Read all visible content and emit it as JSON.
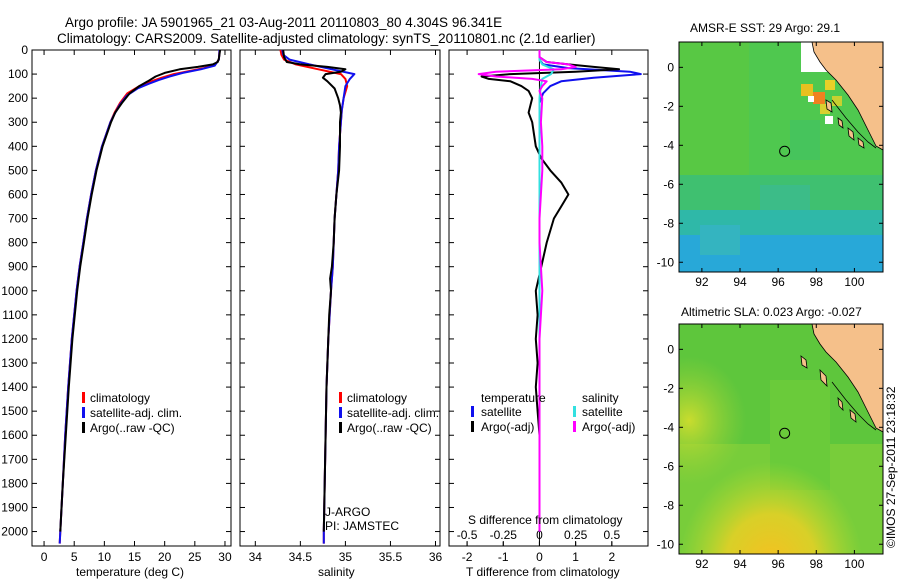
{
  "title": {
    "line1": "Argo profile: JA 5901965_21 03-Aug-2011 20110803_80 4.304S 96.341E",
    "line2": "Climatology: CARS2009. Satellite-adjusted climatology: synTS_20110801.nc (2.1d earlier)"
  },
  "credit": "©IMOS 27-Sep-2011 23:18:32",
  "colors": {
    "red": "#ff0000",
    "blue": "#1010ee",
    "black": "#000000",
    "magenta": "#ff00ff",
    "cyan": "#33e0e0"
  },
  "depth_axis": {
    "ticks": [
      "0",
      "100",
      "200",
      "300",
      "400",
      "500",
      "600",
      "700",
      "800",
      "900",
      "1000",
      "1100",
      "1200",
      "1300",
      "1400",
      "1500",
      "1600",
      "1700",
      "1800",
      "1900",
      "2000"
    ],
    "range": [
      0,
      2060
    ]
  },
  "chart_data": [
    {
      "type": "line",
      "id": "temperature",
      "xlabel": "temperature (deg C)",
      "xlim": [
        -2,
        31
      ],
      "xticks": [
        "0",
        "5",
        "10",
        "15",
        "20",
        "25",
        "30"
      ],
      "ylim": [
        0,
        2060
      ],
      "legend": [
        "climatology",
        "satellite-adj. clim.",
        "Argo(..raw -QC)"
      ],
      "series": [
        {
          "name": "climatology",
          "color": "red",
          "depth": [
            0,
            40,
            60,
            75,
            90,
            100,
            115,
            130,
            150,
            180,
            220,
            260,
            300,
            400,
            500,
            600,
            700,
            800,
            900,
            1000,
            1200,
            1400,
            1600,
            1800,
            2000,
            2050
          ],
          "values": [
            29.1,
            29.0,
            28.4,
            26.5,
            23.5,
            21.5,
            19.5,
            17.8,
            15.8,
            13.8,
            12.6,
            11.7,
            11.0,
            9.6,
            8.6,
            7.8,
            7.1,
            6.5,
            5.9,
            5.4,
            4.6,
            4.0,
            3.5,
            3.1,
            2.7,
            2.6
          ]
        },
        {
          "name": "satellite-adj. clim.",
          "color": "blue",
          "depth": [
            0,
            40,
            65,
            80,
            95,
            110,
            125,
            140,
            160,
            190,
            230,
            270,
            300,
            400,
            500,
            600,
            700,
            800,
            900,
            1000,
            1200,
            1400,
            1600,
            1800,
            2000,
            2050
          ],
          "values": [
            29.1,
            29.0,
            28.3,
            26.0,
            23.0,
            20.8,
            19.0,
            17.4,
            15.5,
            13.7,
            12.5,
            11.6,
            11.0,
            9.6,
            8.6,
            7.8,
            7.1,
            6.5,
            5.9,
            5.4,
            4.6,
            4.0,
            3.5,
            3.1,
            2.7,
            2.6
          ]
        },
        {
          "name": "Argo(..raw -QC)",
          "color": "black",
          "depth": [
            0,
            35,
            50,
            60,
            70,
            80,
            95,
            110,
            130,
            150,
            180,
            220,
            260,
            300,
            400,
            500,
            600,
            700,
            800,
            900,
            1000,
            1200,
            1400,
            1600,
            1800,
            1950,
            2000
          ],
          "values": [
            29.2,
            29.0,
            28.8,
            28.0,
            25.5,
            22.5,
            20.0,
            18.5,
            17.2,
            15.8,
            14.2,
            12.9,
            11.8,
            11.1,
            9.7,
            8.7,
            7.9,
            7.2,
            6.6,
            6.0,
            5.5,
            4.7,
            4.1,
            3.6,
            3.1,
            2.8,
            2.7
          ]
        }
      ]
    },
    {
      "type": "line",
      "id": "salinity",
      "xlabel": "salinity",
      "xlim": [
        33.83,
        36.05
      ],
      "xticks": [
        "34",
        "34.5",
        "35",
        "35.5",
        "36"
      ],
      "ylim": [
        0,
        2060
      ],
      "legend": [
        "climatology",
        "satellite-adj. clim.",
        "Argo(..raw -QC)"
      ],
      "annotation": [
        "J-ARGO",
        "PI: JAMSTEC"
      ],
      "series": [
        {
          "name": "climatology",
          "color": "red",
          "depth": [
            0,
            20,
            40,
            60,
            80,
            100,
            120,
            150,
            200,
            250,
            300,
            400,
            500,
            600,
            700,
            800,
            900,
            1000,
            1200,
            1400,
            1600,
            1800,
            2000,
            2050
          ],
          "values": [
            34.28,
            34.29,
            34.32,
            34.45,
            34.7,
            34.95,
            35.0,
            35.02,
            34.98,
            34.96,
            34.95,
            34.93,
            34.92,
            34.9,
            34.88,
            34.87,
            34.86,
            34.84,
            34.81,
            34.79,
            34.78,
            34.77,
            34.76,
            34.76
          ]
        },
        {
          "name": "satellite-adj. clim.",
          "color": "blue",
          "depth": [
            0,
            20,
            40,
            60,
            80,
            100,
            120,
            150,
            200,
            250,
            300,
            400,
            500,
            600,
            700,
            800,
            900,
            1000,
            1200,
            1400,
            1600,
            1800,
            2000,
            2050
          ],
          "values": [
            34.3,
            34.31,
            34.38,
            34.6,
            34.85,
            35.1,
            35.05,
            35.0,
            34.98,
            34.96,
            34.95,
            34.93,
            34.92,
            34.9,
            34.88,
            34.87,
            34.86,
            34.84,
            34.81,
            34.79,
            34.78,
            34.77,
            34.76,
            34.76
          ]
        },
        {
          "name": "Argo(..raw -QC)",
          "color": "black",
          "depth": [
            0,
            30,
            50,
            60,
            70,
            80,
            90,
            100,
            115,
            130,
            160,
            200,
            230,
            260,
            300,
            400,
            500,
            600,
            700,
            800,
            900,
            950,
            1000,
            1100,
            1200,
            1400,
            1600,
            1800,
            2000
          ],
          "values": [
            34.31,
            34.32,
            34.35,
            34.5,
            34.8,
            35.0,
            34.95,
            34.78,
            34.75,
            34.8,
            34.88,
            34.92,
            34.94,
            34.95,
            34.94,
            34.94,
            34.93,
            34.9,
            34.88,
            34.87,
            34.85,
            34.83,
            34.84,
            34.82,
            34.81,
            34.79,
            34.78,
            34.77,
            34.76
          ]
        }
      ]
    },
    {
      "type": "line",
      "id": "difference",
      "xlabel": "T difference from climatology",
      "xlabel_top": "S difference from climatology",
      "xlim": [
        -2.5,
        3.0
      ],
      "xticks": [
        "-2",
        "-1",
        "0",
        "1",
        "2"
      ],
      "xticks_top": [
        "-0.5",
        "-0.25",
        "0",
        "0.25",
        "0.5"
      ],
      "ylim": [
        0,
        2060
      ],
      "legend": [
        "temperature",
        "satellite",
        "Argo(-adj)",
        "salinity",
        "satellite",
        "Argo(-adj)"
      ],
      "series": [
        {
          "name": "T satellite",
          "color": "blue",
          "depth": [
            0,
            40,
            60,
            75,
            90,
            100,
            115,
            130,
            150,
            180,
            220,
            300,
            500,
            1000,
            1500,
            2000
          ],
          "values": [
            0,
            0,
            0.1,
            0.8,
            2.5,
            2.8,
            1.5,
            0.6,
            0.3,
            0.1,
            0,
            0,
            0,
            0,
            0,
            0
          ]
        },
        {
          "name": "T Argo(-adj)",
          "color": "black",
          "depth": [
            0,
            30,
            50,
            60,
            70,
            80,
            90,
            100,
            110,
            120,
            130,
            150,
            170,
            200,
            230,
            260,
            300,
            350,
            400,
            450,
            500,
            550,
            600,
            650,
            700,
            800,
            900,
            1000,
            1100,
            1200,
            1300,
            1400,
            1500,
            1600,
            1700,
            1800,
            1900,
            2000
          ],
          "values": [
            0,
            0,
            0.2,
            0.8,
            1.5,
            2.2,
            1.0,
            -0.8,
            -1.6,
            -1.4,
            -0.8,
            -0.5,
            -0.3,
            -0.2,
            -0.25,
            -0.3,
            -0.2,
            -0.15,
            -0.1,
            0.05,
            0.3,
            0.6,
            0.8,
            0.6,
            0.4,
            0.2,
            0.05,
            -0.1,
            -0.05,
            -0.1,
            -0.05,
            -0.1,
            -0.05,
            0,
            0,
            0,
            0,
            0
          ]
        },
        {
          "name": "S satellite",
          "color": "cyan",
          "depth": [
            0,
            40,
            60,
            80,
            100,
            120,
            150,
            200,
            300,
            500,
            1000,
            1500,
            2000
          ],
          "values": [
            0,
            0,
            0.02,
            0.1,
            0.08,
            0.02,
            0.01,
            0,
            0,
            0,
            0,
            0,
            0
          ]
        },
        {
          "name": "S Argo(-adj)",
          "color": "magenta",
          "depth": [
            0,
            30,
            50,
            60,
            70,
            80,
            90,
            100,
            110,
            120,
            130,
            150,
            170,
            200,
            300,
            400,
            500,
            600,
            700,
            800,
            900,
            1000,
            1200,
            1400,
            1600,
            1800,
            2000
          ],
          "values": [
            0,
            0,
            0.05,
            0.2,
            0.25,
            0.15,
            -0.3,
            -0.42,
            -0.3,
            -0.05,
            0.05,
            0.02,
            0,
            0.02,
            0.01,
            0.02,
            0.02,
            0.01,
            0,
            0,
            0.01,
            0.02,
            0,
            0,
            0,
            0,
            0
          ]
        }
      ]
    },
    {
      "type": "heatmap",
      "id": "sst-map",
      "title": "AMSR-E SST: 29  Argo: 29.1",
      "xticks": [
        "92",
        "94",
        "96",
        "98",
        "100"
      ],
      "yticks": [
        "0",
        "-2",
        "-4",
        "-6",
        "-8",
        "-10"
      ],
      "xlim": [
        90.8,
        101.5
      ],
      "ylim": [
        -10.5,
        1.3
      ],
      "marker": {
        "lon": 96.341,
        "lat": -4.304
      }
    },
    {
      "type": "heatmap",
      "id": "sla-map",
      "title": "Altimetric SLA: 0.023  Argo: -0.027",
      "xticks": [
        "92",
        "94",
        "96",
        "98",
        "100"
      ],
      "yticks": [
        "0",
        "-2",
        "-4",
        "-6",
        "-8",
        "-10"
      ],
      "xlim": [
        90.8,
        101.5
      ],
      "ylim": [
        -10.5,
        1.3
      ],
      "marker": {
        "lon": 96.341,
        "lat": -4.304
      }
    }
  ]
}
